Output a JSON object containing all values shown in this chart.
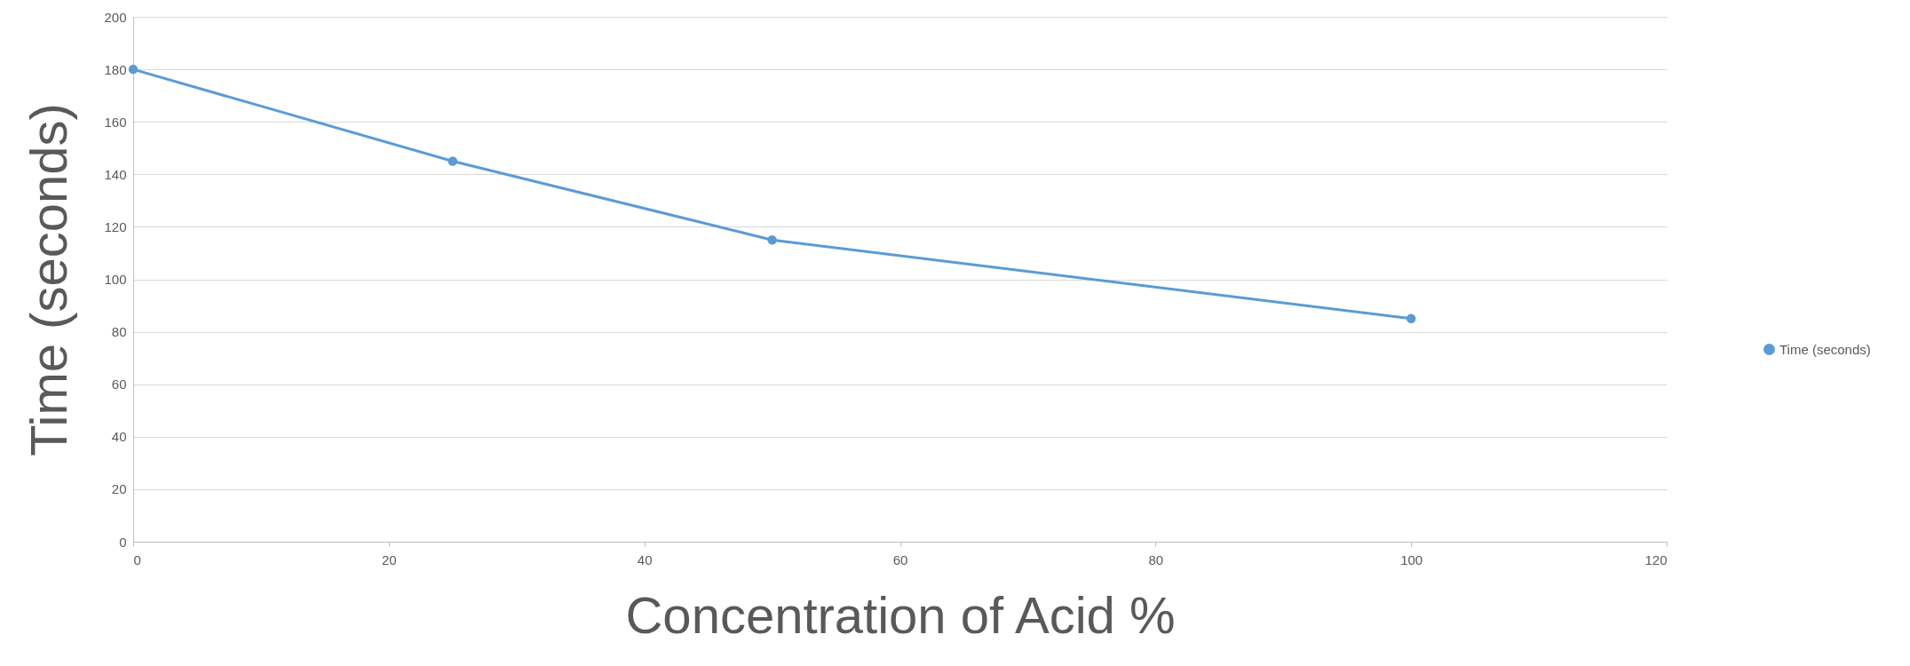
{
  "chart_data": {
    "type": "line",
    "xlabel": "Concentration of Acid %",
    "ylabel": "Time (seconds)",
    "x": [
      0,
      25,
      50,
      100
    ],
    "series": [
      {
        "name": "Time (seconds)",
        "color": "#5b9bd5",
        "values": [
          180,
          145,
          115,
          85
        ]
      }
    ],
    "xlim": [
      0,
      120
    ],
    "xticks": [
      0,
      20,
      40,
      60,
      80,
      100,
      120
    ],
    "ylim": [
      0,
      200
    ],
    "yticks": [
      0,
      20,
      40,
      60,
      80,
      100,
      120,
      140,
      160,
      180,
      200
    ],
    "grid": "y",
    "legend": "right",
    "marker": "circle",
    "line_style": "solid"
  }
}
